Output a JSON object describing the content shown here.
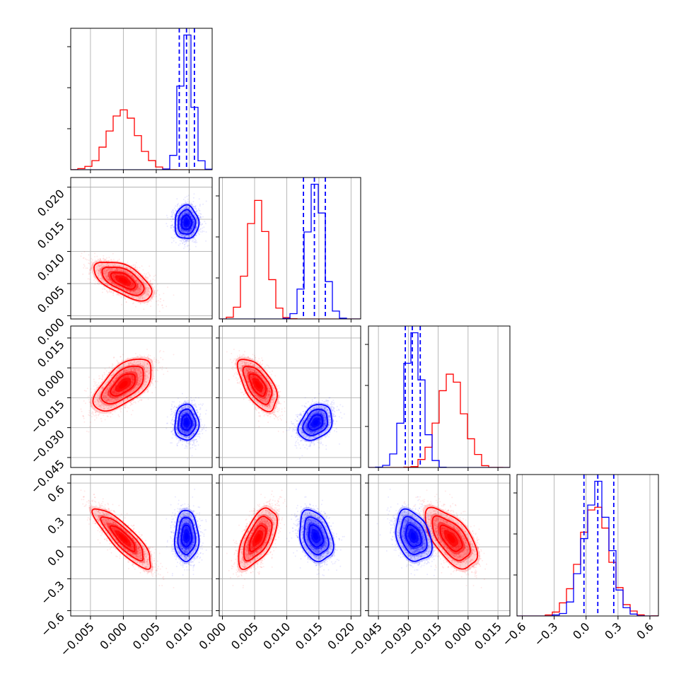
{
  "chart_data": {
    "type": "corner",
    "grid": true,
    "colors": {
      "series_a": "#ff0000",
      "series_b": "#0000ff",
      "grid": "#b0b0b0",
      "axes": "#000000"
    },
    "parameter_ranges": [
      [
        -0.008,
        0.0135
      ],
      [
        -0.0005,
        0.0215
      ],
      [
        -0.05,
        0.021
      ],
      [
        -0.65,
        0.68
      ]
    ],
    "tick_values": [
      [
        -0.005,
        0.0,
        0.005,
        0.01
      ],
      [
        0.0,
        0.005,
        0.01,
        0.015,
        0.02
      ],
      [
        -0.045,
        -0.03,
        -0.015,
        0.0,
        0.015
      ],
      [
        -0.6,
        -0.3,
        0.0,
        0.3,
        0.6
      ]
    ],
    "tick_labels": [
      [
        "−0.005",
        "0.000",
        "0.005",
        "0.010"
      ],
      [
        "0.000",
        "0.005",
        "0.010",
        "0.015",
        "0.020"
      ],
      [
        "−0.045",
        "−0.030",
        "−0.015",
        "0.000",
        "0.015"
      ],
      [
        "−0.6",
        "−0.3",
        "0.0",
        "0.3",
        "0.6"
      ]
    ],
    "series": [
      {
        "color": "#ff0000",
        "mean": [
          0.0,
          0.0055,
          -0.0085,
          0.08
        ],
        "std": [
          0.0022,
          0.0015,
          0.0065,
          0.14
        ],
        "corr": [
          [
            1.0,
            -0.6,
            0.6,
            -0.85
          ],
          [
            -0.6,
            1.0,
            -0.6,
            0.6
          ],
          [
            0.6,
            -0.6,
            1.0,
            -0.6
          ],
          [
            -0.85,
            0.6,
            -0.6,
            1.0
          ]
        ],
        "quantiles": null
      },
      {
        "color": "#0000ff",
        "mean": [
          0.0096,
          0.0145,
          -0.0275,
          0.1
        ],
        "std": [
          0.0009,
          0.0013,
          0.0045,
          0.12
        ],
        "corr": [
          [
            1.0,
            0.0,
            0.0,
            0.0
          ],
          [
            0.0,
            1.0,
            0.3,
            -0.3
          ],
          [
            0.0,
            0.3,
            1.0,
            -0.3
          ],
          [
            0.0,
            -0.3,
            -0.3,
            1.0
          ]
        ],
        "quantiles": [
          [
            0.0085,
            0.0096,
            0.0108
          ],
          [
            0.0126,
            0.0143,
            0.016
          ],
          [
            -0.0315,
            -0.028,
            -0.024
          ],
          [
            -0.02,
            0.11,
            0.26
          ]
        ]
      }
    ]
  }
}
